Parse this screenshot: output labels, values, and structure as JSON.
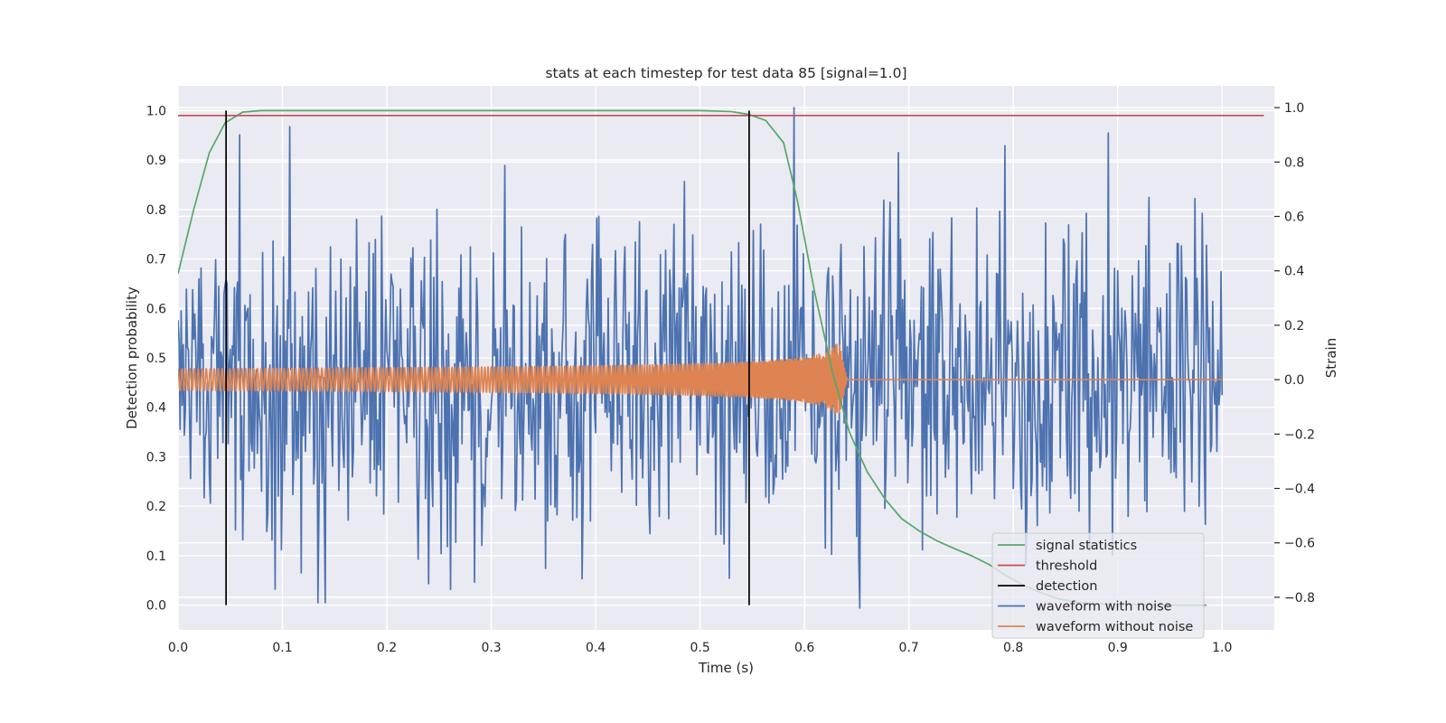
{
  "chart_data": {
    "type": "line",
    "title": "stats at each timestep for test data 85 [signal=1.0]",
    "xlabel": "Time (s)",
    "ylabel_left": "Detection probability",
    "ylabel_right": "Strain",
    "xlim": [
      0.0,
      1.05
    ],
    "ylim_left": [
      -0.05,
      1.05
    ],
    "ylim_right": [
      -0.92,
      1.08
    ],
    "x_ticks": [
      0.0,
      0.1,
      0.2,
      0.3,
      0.4,
      0.5,
      0.6,
      0.7,
      0.8,
      0.9,
      1.0
    ],
    "x_tick_labels": [
      "0.0",
      "0.1",
      "0.2",
      "0.3",
      "0.4",
      "0.5",
      "0.6",
      "0.7",
      "0.8",
      "0.9",
      "1.0"
    ],
    "y_left_ticks": [
      0.0,
      0.1,
      0.2,
      0.3,
      0.4,
      0.5,
      0.6,
      0.7,
      0.8,
      0.9,
      1.0
    ],
    "y_left_tick_labels": [
      "0.0",
      "0.1",
      "0.2",
      "0.3",
      "0.4",
      "0.5",
      "0.6",
      "0.7",
      "0.8",
      "0.9",
      "1.0"
    ],
    "y_right_ticks": [
      -0.8,
      -0.6,
      -0.4,
      -0.2,
      0.0,
      0.2,
      0.4,
      0.6,
      0.8,
      1.0
    ],
    "y_right_tick_labels": [
      "−0.8",
      "−0.6",
      "−0.4",
      "−0.2",
      "0.0",
      "0.2",
      "0.4",
      "0.6",
      "0.8",
      "1.0"
    ],
    "grid": true,
    "legend_placement": "lower-right",
    "series": [
      {
        "name": "signal statistics",
        "axis": "left",
        "color": "#55a868",
        "x": [
          0.0,
          0.015,
          0.03,
          0.045,
          0.062,
          0.08,
          0.1,
          0.2,
          0.3,
          0.4,
          0.5,
          0.53,
          0.547,
          0.563,
          0.58,
          0.593,
          0.61,
          0.627,
          0.643,
          0.66,
          0.677,
          0.693,
          0.71,
          0.727,
          0.743,
          0.76,
          0.777,
          0.793,
          0.81,
          0.827,
          0.843,
          0.86,
          0.877,
          0.893,
          0.91,
          0.927,
          0.943,
          0.96,
          0.985
        ],
        "y": [
          0.67,
          0.8,
          0.915,
          0.975,
          0.997,
          1.0,
          1.0,
          1.0,
          1.0,
          1.0,
          1.0,
          0.998,
          0.992,
          0.98,
          0.935,
          0.82,
          0.63,
          0.47,
          0.35,
          0.27,
          0.215,
          0.175,
          0.15,
          0.13,
          0.115,
          0.1,
          0.082,
          0.06,
          0.04,
          0.025,
          0.013,
          0.006,
          0.003,
          0.002,
          0.001,
          0.001,
          0.0,
          0.0,
          0.0
        ]
      },
      {
        "name": "threshold",
        "axis": "left",
        "color": "#c44e52",
        "x": [
          0.0,
          1.04
        ],
        "y": [
          0.99,
          0.99
        ]
      },
      {
        "name": "detection",
        "axis": "left",
        "color": "#000000",
        "segments": [
          {
            "x": 0.046,
            "y0": 0.0,
            "y1": 1.0
          },
          {
            "x": 0.547,
            "y0": 0.0,
            "y1": 1.0
          }
        ]
      },
      {
        "name": "waveform with noise",
        "axis": "right",
        "color": "#4c72b0",
        "x_start": 0.0,
        "x_end": 1.0,
        "amplitude_range": [
          -0.84,
          1.0
        ],
        "peaks": [
          {
            "x": 0.059,
            "y": 0.9
          },
          {
            "x": 0.107,
            "y": 0.93
          },
          {
            "x": 0.093,
            "y": -0.77
          },
          {
            "x": 0.23,
            "y": -0.66
          },
          {
            "x": 0.24,
            "y": -0.75
          },
          {
            "x": 0.528,
            "y": -0.73
          },
          {
            "x": 0.59,
            "y": 1.0
          },
          {
            "x": 0.653,
            "y": -0.84
          },
          {
            "x": 0.792,
            "y": 0.86
          }
        ]
      },
      {
        "name": "waveform without noise",
        "axis": "right",
        "color": "#dd8452",
        "x_start": 0.0,
        "merger_x": 0.635,
        "x_end": 1.0,
        "peak_amplitude": 0.13,
        "initial_amplitude": 0.04
      }
    ]
  }
}
